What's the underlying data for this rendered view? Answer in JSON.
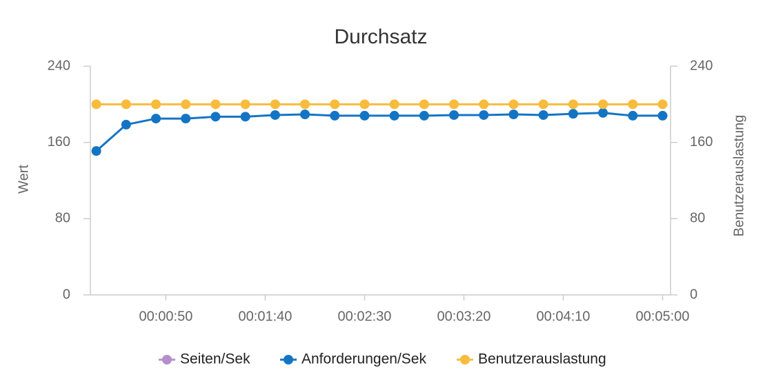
{
  "chart_data": {
    "type": "line",
    "title": "Durchsatz",
    "y_label": "Wert",
    "y2_label": "Benutzerauslastung",
    "x": [
      15,
      30,
      45,
      60,
      75,
      90,
      105,
      120,
      135,
      150,
      165,
      180,
      195,
      210,
      225,
      240,
      255,
      270,
      285,
      300
    ],
    "xlim": [
      12,
      304
    ],
    "xticks": [
      {
        "value": 50,
        "label": "00:00:50"
      },
      {
        "value": 100,
        "label": "00:01:40"
      },
      {
        "value": 150,
        "label": "00:02:30"
      },
      {
        "value": 200,
        "label": "00:03:20"
      },
      {
        "value": 250,
        "label": "00:04:10"
      },
      {
        "value": 300,
        "label": "00:05:00"
      }
    ],
    "ylim": [
      0,
      240
    ],
    "yticks": [
      0,
      80,
      160,
      240
    ],
    "y2lim": [
      0,
      240
    ],
    "y2ticks": [
      0,
      80,
      160,
      240
    ],
    "grid": false,
    "legend": "bottom",
    "series": [
      {
        "name": "Seiten/Sek",
        "color": "#b48fcb",
        "values": [
          null,
          null,
          null,
          null,
          null,
          null,
          null,
          null,
          null,
          null,
          null,
          null,
          null,
          null,
          null,
          null,
          null,
          null,
          null,
          null
        ]
      },
      {
        "name": "Anforderungen/Sek",
        "color": "#1474c4",
        "values": [
          151,
          178.6,
          185,
          185,
          187,
          187,
          188.7,
          189.4,
          188,
          188,
          188,
          188,
          188.7,
          188.7,
          189.4,
          188.7,
          190,
          191,
          188,
          188
        ]
      },
      {
        "name": "Benutzerauslastung",
        "color": "#f8bb3c",
        "axis": "y2",
        "values": [
          200,
          200,
          200,
          200,
          200,
          200,
          200,
          200,
          200,
          200,
          200,
          200,
          200,
          200,
          200,
          200,
          200,
          200,
          200,
          200
        ]
      }
    ]
  }
}
